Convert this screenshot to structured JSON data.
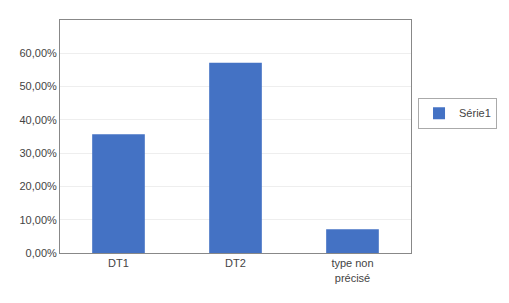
{
  "chart_data": {
    "type": "bar",
    "categories": [
      "DT1",
      "DT2",
      "type non\nprécisé"
    ],
    "series": [
      {
        "name": "Série1",
        "color": "#4472C4",
        "values": [
          0.3571,
          0.5714,
          0.0714
        ]
      }
    ],
    "ylim": [
      0,
      0.7
    ],
    "yticks": [
      {
        "value": 0.0,
        "label": "0,00%"
      },
      {
        "value": 0.1,
        "label": "10,00%"
      },
      {
        "value": 0.2,
        "label": "20,00%"
      },
      {
        "value": 0.3,
        "label": "30,00%"
      },
      {
        "value": 0.4,
        "label": "40,00%"
      },
      {
        "value": 0.5,
        "label": "50,00%"
      },
      {
        "value": 0.6,
        "label": "60,00%"
      }
    ],
    "grid": true,
    "legend": "right"
  }
}
